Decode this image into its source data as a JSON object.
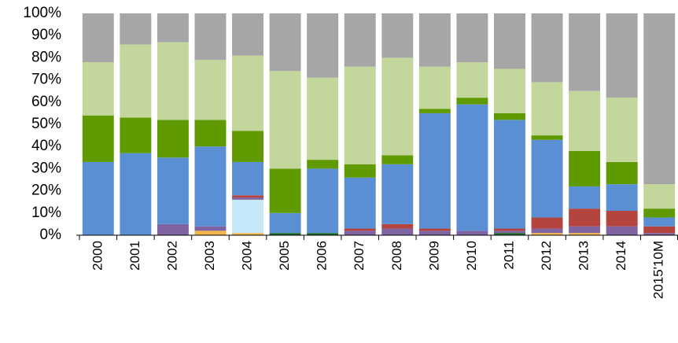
{
  "chart_data": {
    "type": "stacked_bar_100",
    "categories": [
      "2000",
      "2001",
      "2002",
      "2003",
      "2004",
      "2005",
      "2006",
      "2007",
      "2008",
      "2009",
      "2010",
      "2011",
      "2012",
      "2013",
      "2014",
      "2015'10M"
    ],
    "series": [
      {
        "color": "#f2b64a",
        "values": [
          0,
          0,
          0,
          2,
          1,
          0,
          0,
          0,
          0,
          0,
          0,
          0,
          1,
          1,
          0,
          0
        ]
      },
      {
        "color": "#c6e9fa",
        "values": [
          0,
          0,
          0,
          0,
          15,
          0,
          0,
          0,
          0,
          0,
          0,
          0,
          0,
          0,
          0,
          0
        ]
      },
      {
        "color": "#1e6b2a",
        "values": [
          0,
          0,
          0,
          0,
          0,
          1,
          1,
          0,
          0,
          0,
          0,
          1,
          0,
          0,
          0,
          0
        ]
      },
      {
        "color": "#8064a2",
        "values": [
          0,
          0,
          5,
          2,
          1,
          0,
          0,
          2,
          3,
          2,
          2,
          1,
          2,
          3,
          4,
          1
        ]
      },
      {
        "color": "#b3443e",
        "values": [
          0,
          0,
          0,
          0,
          1,
          0,
          0,
          1,
          2,
          1,
          0,
          1,
          5,
          8,
          7,
          3
        ]
      },
      {
        "color": "#5b8fd4",
        "values": [
          33,
          37,
          30,
          36,
          15,
          9,
          29,
          23,
          27,
          52,
          57,
          49,
          35,
          10,
          12,
          4
        ]
      },
      {
        "color": "#5f9b00",
        "values": [
          21,
          16,
          17,
          12,
          14,
          20,
          4,
          6,
          4,
          2,
          3,
          3,
          2,
          16,
          10,
          4
        ]
      },
      {
        "color": "#c3d69b",
        "values": [
          24,
          33,
          35,
          27,
          34,
          44,
          37,
          44,
          44,
          19,
          16,
          20,
          24,
          27,
          29,
          11
        ]
      },
      {
        "color": "#a6a6a6",
        "values": [
          22,
          14,
          13,
          21,
          19,
          26,
          29,
          24,
          20,
          24,
          22,
          25,
          31,
          35,
          38,
          77
        ]
      }
    ],
    "ylim": [
      0,
      100
    ],
    "yticks": [
      {
        "value": 0,
        "label": "0%"
      },
      {
        "value": 10,
        "label": "10%"
      },
      {
        "value": 20,
        "label": "20%"
      },
      {
        "value": 30,
        "label": "30%"
      },
      {
        "value": 40,
        "label": "40%"
      },
      {
        "value": 50,
        "label": "50%"
      },
      {
        "value": 60,
        "label": "60%"
      },
      {
        "value": 70,
        "label": "70%"
      },
      {
        "value": 80,
        "label": "80%"
      },
      {
        "value": 90,
        "label": "90%"
      },
      {
        "value": 100,
        "label": "100%"
      }
    ],
    "grid": false
  }
}
